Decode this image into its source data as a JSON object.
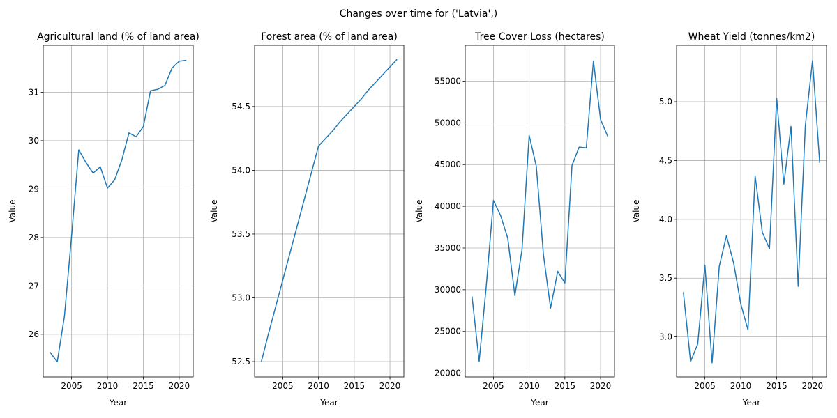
{
  "figure": {
    "title": "Changes over time for ('Latvia',)"
  },
  "colors": {
    "line": "#1f77b4",
    "grid": "#b0b0b0",
    "axes": "#000000"
  },
  "chart_data": [
    {
      "type": "line",
      "title": "Agricultural land (% of land area)",
      "xlabel": "Year",
      "ylabel": "Value",
      "grid": true,
      "xlim": [
        2001.05,
        2021.95
      ],
      "ylim": [
        25.12,
        31.97
      ],
      "xticks": [
        2005,
        2010,
        2015,
        2020
      ],
      "yticks": [
        26,
        27,
        28,
        29,
        30,
        31
      ],
      "ytick_labels": [
        "26",
        "27",
        "28",
        "29",
        "30",
        "31"
      ],
      "x": [
        2002,
        2003,
        2004,
        2005,
        2006,
        2007,
        2008,
        2009,
        2010,
        2011,
        2012,
        2013,
        2014,
        2015,
        2016,
        2017,
        2018,
        2019,
        2020,
        2021
      ],
      "series": [
        {
          "values": [
            25.63,
            25.43,
            26.37,
            28.03,
            29.81,
            29.55,
            29.33,
            29.46,
            29.02,
            29.19,
            29.6,
            30.16,
            30.08,
            30.29,
            31.03,
            31.06,
            31.14,
            31.5,
            31.64,
            31.66
          ]
        }
      ]
    },
    {
      "type": "line",
      "title": "Forest area (% of land area)",
      "xlabel": "Year",
      "ylabel": "Value",
      "grid": true,
      "xlim": [
        2001.05,
        2021.95
      ],
      "ylim": [
        52.38,
        54.98
      ],
      "xticks": [
        2005,
        2010,
        2015,
        2020
      ],
      "yticks": [
        52.5,
        53.0,
        53.5,
        54.0,
        54.5
      ],
      "ytick_labels": [
        "52.5",
        "53.0",
        "53.5",
        "54.0",
        "54.5"
      ],
      "x": [
        2002,
        2003,
        2004,
        2005,
        2006,
        2007,
        2008,
        2009,
        2010,
        2011,
        2012,
        2013,
        2014,
        2015,
        2016,
        2017,
        2018,
        2019,
        2020,
        2021
      ],
      "series": [
        {
          "values": [
            52.5,
            52.72,
            52.93,
            53.14,
            53.35,
            53.56,
            53.77,
            53.98,
            54.19,
            54.25,
            54.31,
            54.38,
            54.44,
            54.5,
            54.56,
            54.63,
            54.69,
            54.75,
            54.81,
            54.87
          ]
        }
      ]
    },
    {
      "type": "line",
      "title": "Tree Cover Loss (hectares)",
      "xlabel": "Year",
      "ylabel": "Value",
      "grid": true,
      "xlim": [
        2001.05,
        2021.95
      ],
      "ylim": [
        19550,
        59300
      ],
      "xticks": [
        2005,
        2010,
        2015,
        2020
      ],
      "yticks": [
        20000,
        25000,
        30000,
        35000,
        40000,
        45000,
        50000,
        55000
      ],
      "ytick_labels": [
        "20000",
        "25000",
        "30000",
        "35000",
        "40000",
        "45000",
        "50000",
        "55000"
      ],
      "x": [
        2002,
        2003,
        2004,
        2005,
        2006,
        2007,
        2008,
        2009,
        2010,
        2011,
        2012,
        2013,
        2014,
        2015,
        2016,
        2017,
        2018,
        2019,
        2020,
        2021
      ],
      "series": [
        {
          "values": [
            29200,
            21400,
            30500,
            40700,
            38900,
            36200,
            29300,
            34800,
            48500,
            44800,
            34200,
            27800,
            32200,
            30800,
            44900,
            47100,
            47000,
            57400,
            50400,
            48400
          ]
        }
      ]
    },
    {
      "type": "line",
      "title": "Wheat Yield (tonnes/km2)",
      "xlabel": "Year",
      "ylabel": "Value",
      "grid": true,
      "xlim": [
        2001.05,
        2021.95
      ],
      "ylim": [
        2.66,
        5.48
      ],
      "xticks": [
        2005,
        2010,
        2015,
        2020
      ],
      "yticks": [
        3.0,
        3.5,
        4.0,
        4.5,
        5.0
      ],
      "ytick_labels": [
        "3.0",
        "3.5",
        "4.0",
        "4.5",
        "5.0"
      ],
      "x": [
        2002,
        2003,
        2004,
        2005,
        2006,
        2007,
        2008,
        2009,
        2010,
        2011,
        2012,
        2013,
        2014,
        2015,
        2016,
        2017,
        2018,
        2019,
        2020,
        2021
      ],
      "series": [
        {
          "values": [
            3.38,
            2.79,
            2.94,
            3.61,
            2.78,
            3.6,
            3.86,
            3.63,
            3.28,
            3.06,
            4.37,
            3.89,
            3.75,
            5.03,
            4.3,
            4.79,
            3.43,
            4.8,
            5.35,
            4.48
          ]
        }
      ]
    }
  ]
}
